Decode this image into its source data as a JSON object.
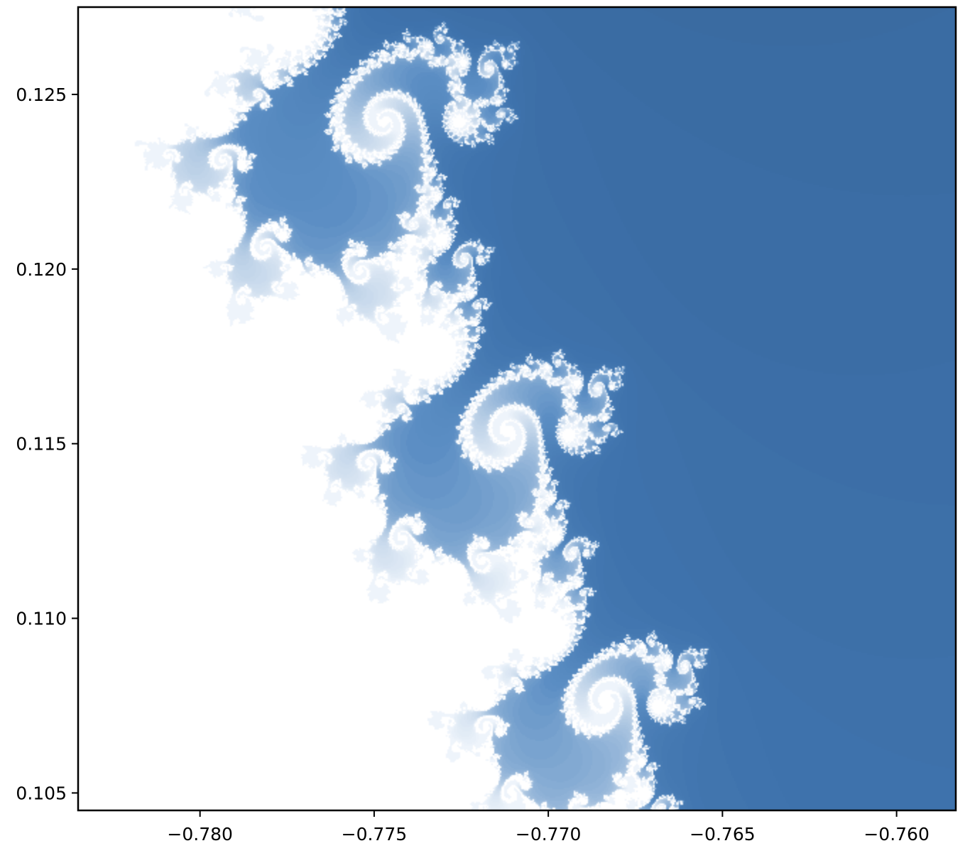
{
  "chart_data": {
    "type": "heatmap",
    "title": "",
    "xlabel": "",
    "ylabel": "",
    "xlim": [
      -0.7835,
      -0.7583
    ],
    "ylim": [
      0.1045,
      0.1275
    ],
    "x_ticks": [
      -0.78,
      -0.775,
      -0.77,
      -0.765,
      -0.76
    ],
    "x_tick_labels": [
      "−0.780",
      "−0.775",
      "−0.770",
      "−0.765",
      "−0.760"
    ],
    "y_ticks": [
      0.105,
      0.11,
      0.115,
      0.12,
      0.125
    ],
    "y_tick_labels": [
      "0.105",
      "0.110",
      "0.115",
      "0.120",
      "0.125"
    ],
    "grid": false,
    "colormap": "blues",
    "colors": {
      "deep": "#27466a",
      "mid": "#3f73ad",
      "light": "#5b8ec4",
      "pale": "#b9cfe6",
      "inside": "#ffffff"
    },
    "fractal": {
      "description": "Mandelbrot set boundary (seahorse valley) coloured by escape iteration",
      "max_iter": 120
    }
  }
}
